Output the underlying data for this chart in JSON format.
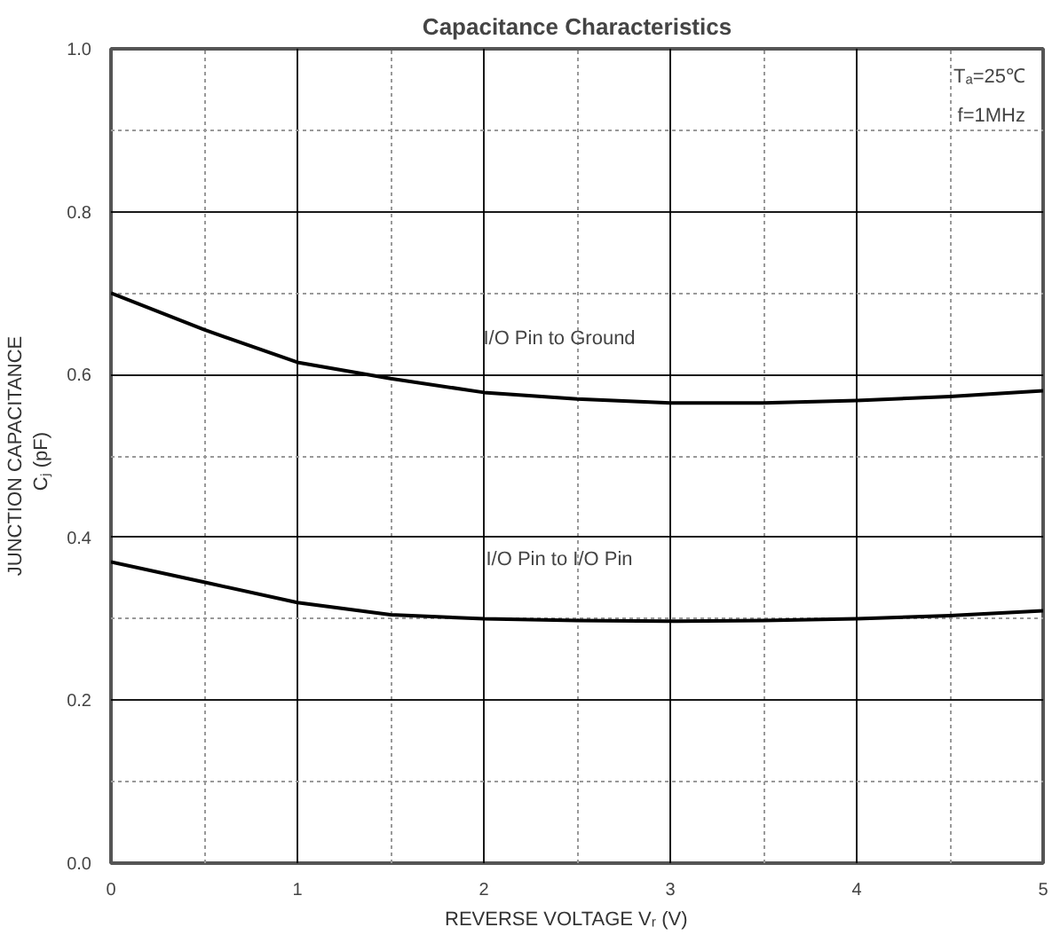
{
  "chart_data": {
    "type": "line",
    "title": "Capacitance Characteristics",
    "xlabel": "REVERSE VOLTAGE   Vᵣ   (V)",
    "ylabel": "JUNCTION CAPACITANCE\nCⱼ   (pF)",
    "x": [
      0,
      0.5,
      1,
      1.5,
      2,
      2.5,
      3,
      3.5,
      4,
      4.5,
      5
    ],
    "series": [
      {
        "name": "I/O Pin to Ground",
        "color": "#000000",
        "values": [
          0.7,
          0.655,
          0.615,
          0.595,
          0.578,
          0.57,
          0.565,
          0.565,
          0.568,
          0.573,
          0.58
        ]
      },
      {
        "name": "I/O Pin to I/O Pin",
        "color": "#000000",
        "values": [
          0.37,
          0.345,
          0.32,
          0.305,
          0.3,
          0.298,
          0.297,
          0.298,
          0.3,
          0.304,
          0.31
        ]
      }
    ],
    "xlim": [
      0,
      5
    ],
    "ylim": [
      0.0,
      1.0
    ],
    "xticks": [
      0,
      1,
      2,
      3,
      4,
      5
    ],
    "yticks": [
      {
        "value": 0,
        "label": "0.0"
      },
      0.2,
      0.4,
      0.6,
      0.8,
      {
        "value": 1,
        "label": "1.0"
      }
    ],
    "annotations": [
      "Tₐ=25℃",
      "f=1MHz"
    ],
    "grid": true,
    "marker": "none",
    "line_style": "solid"
  }
}
